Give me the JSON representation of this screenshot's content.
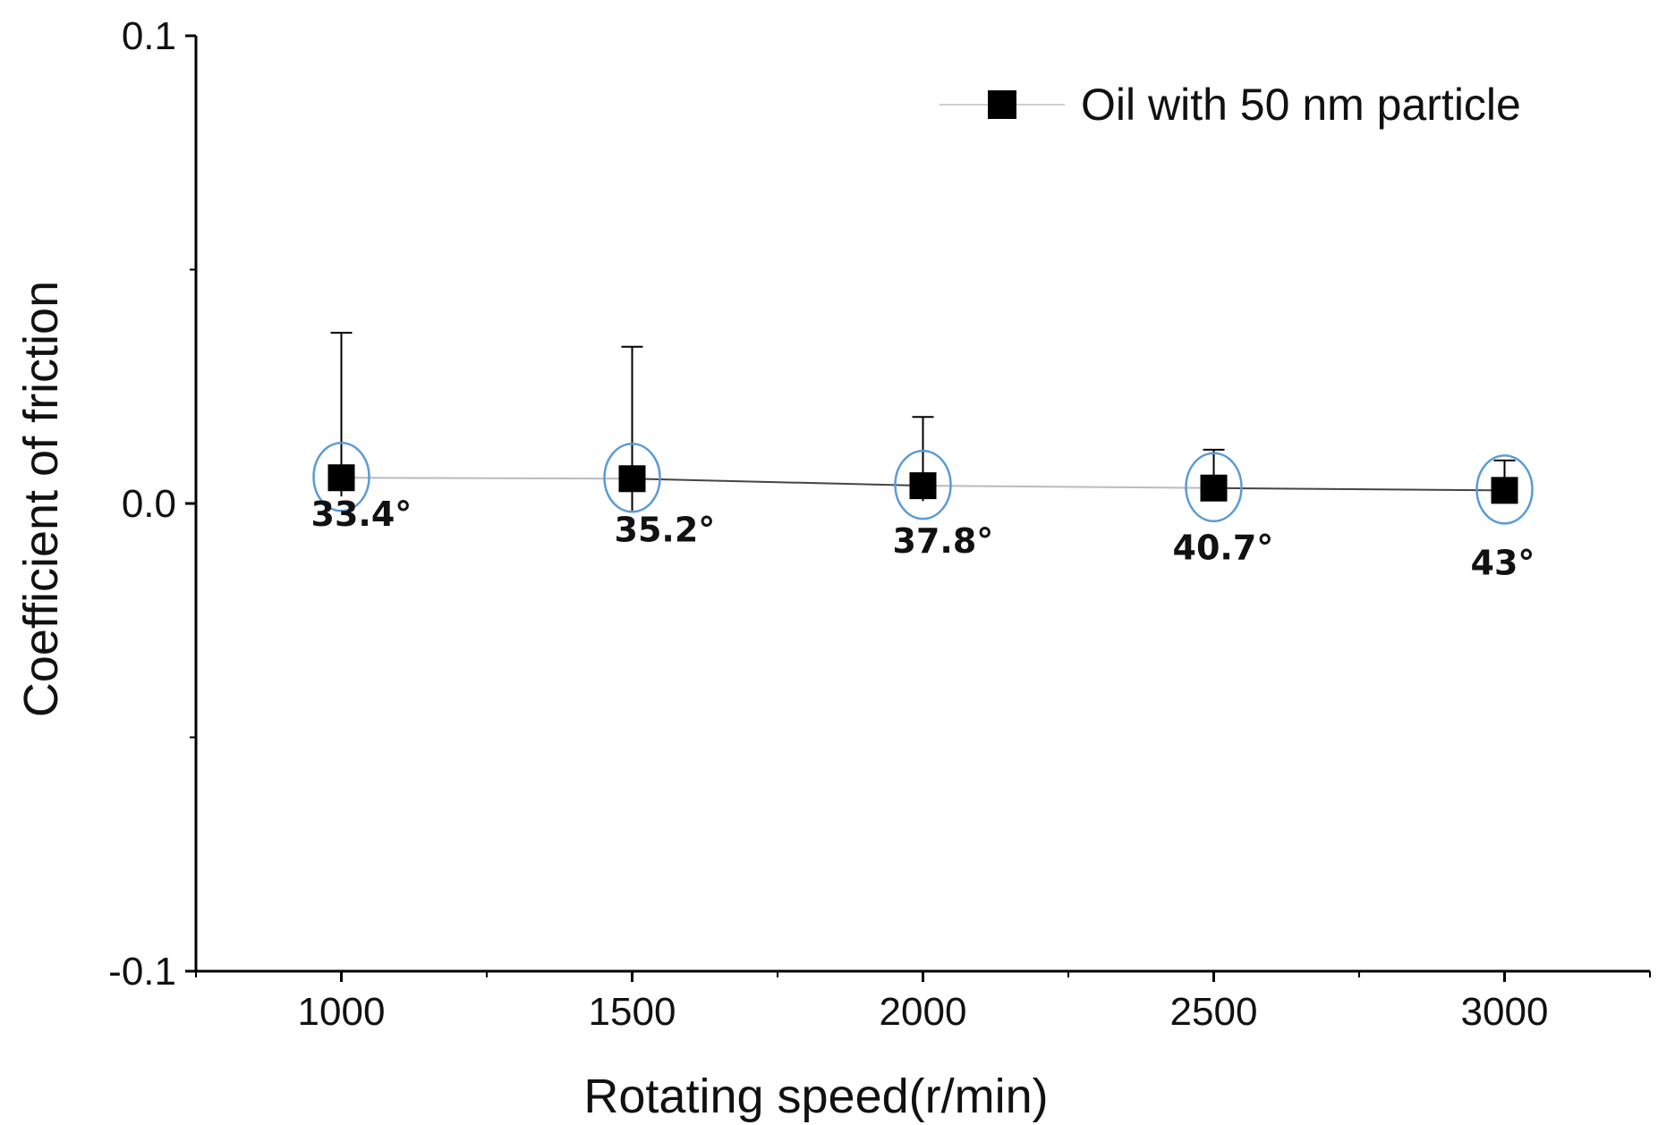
{
  "chart_data": {
    "type": "scatter",
    "title": "",
    "xlabel": "Rotating speed(r/min)",
    "ylabel": "Coefficient of friction",
    "xlim": [
      750,
      3250
    ],
    "ylim": [
      -0.1,
      0.1
    ],
    "x_ticks": [
      1000,
      1500,
      2000,
      2500,
      3000
    ],
    "y_ticks": [
      -0.1,
      0.0,
      0.1
    ],
    "y_tick_labels": [
      "-0.1",
      "0.0",
      "0.1"
    ],
    "x_tick_labels": [
      "1000",
      "1500",
      "2000",
      "2500",
      "3000"
    ],
    "legend": {
      "position": "top-right",
      "entries": [
        "Oil with 50 nm particle"
      ]
    },
    "series": [
      {
        "name": "Oil with 50 nm particle",
        "x": [
          1000,
          1500,
          2000,
          2500,
          3000
        ],
        "y": [
          0.0055,
          0.0053,
          0.0038,
          0.0033,
          0.0028
        ],
        "error_upper": [
          0.0365,
          0.0335,
          0.0185,
          0.0115,
          0.0092
        ],
        "error_lower": [
          0.0015,
          -0.0015,
          0.0005,
          0.0015,
          0.0015
        ],
        "annotations": [
          "33.4°",
          "35.2°",
          "37.8°",
          "40.7°",
          "43°"
        ]
      }
    ],
    "colors": {
      "marker": "#000000",
      "highlight_circle": "#5b9bd5",
      "axis": "#000000",
      "connector": "#bbbbbb"
    }
  }
}
